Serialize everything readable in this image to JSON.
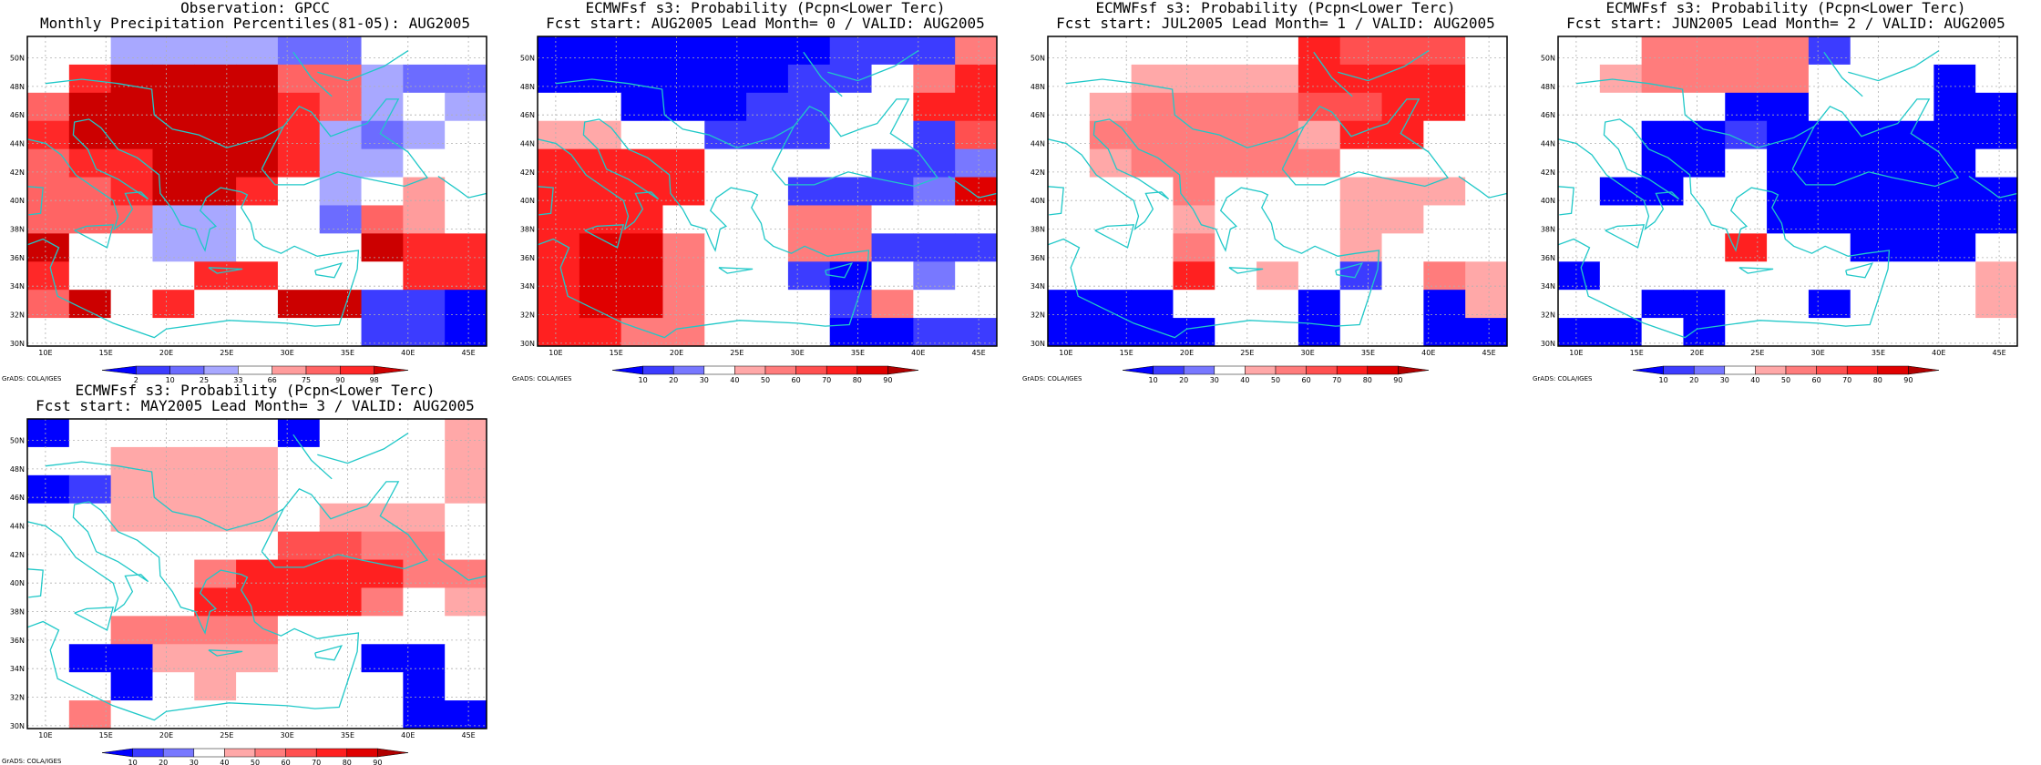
{
  "colors": {
    "ocean_coast": "#20c8c8",
    "grid": "#b0b0b0",
    "frame": "#000000"
  },
  "credit": "GrADS: COLA/IGES",
  "lon_ticks": [
    "10E",
    "15E",
    "20E",
    "25E",
    "30E",
    "35E",
    "40E",
    "45E"
  ],
  "lat_ticks": [
    "30N",
    "32N",
    "34N",
    "36N",
    "38N",
    "40N",
    "42N",
    "44N",
    "46N",
    "48N",
    "50N"
  ],
  "scales": {
    "percentile": {
      "labels": [
        "2",
        "10",
        "25",
        "33",
        "66",
        "75",
        "90",
        "98"
      ],
      "colors": [
        "#0000ff",
        "#3c3cff",
        "#6c6cff",
        "#a8a8ff",
        "#ffffff",
        "#ff9c9c",
        "#ff6464",
        "#ff2828",
        "#cc0000"
      ]
    },
    "probability": {
      "labels": [
        "10",
        "20",
        "30",
        "40",
        "50",
        "60",
        "70",
        "80",
        "90"
      ],
      "colors": [
        "#0000ff",
        "#3c3cff",
        "#7878ff",
        "#ffffff",
        "#ffa8a8",
        "#ff7c7c",
        "#ff5050",
        "#ff2020",
        "#e00000",
        "#b00000"
      ]
    }
  },
  "panels": [
    {
      "id": "obs",
      "title1": "Observation: GPCC",
      "title2": "Monthly Precipitation Percentiles(81-05): AUG2005",
      "scale": "percentile",
      "grid": [
        "44333322444",
        "47888866322",
        "68888876343",
        "78888873234",
        "67788873344",
        "66788743454",
        "66633442654",
        "84433444877",
        "74447744477",
        "68474488110",
        "44444444110"
      ]
    },
    {
      "id": "lead0",
      "title1": "ECMWFsf s3: Probability (Pcpn<Lower Terc)",
      "title2": "Fcst start: AUG2005  Lead Month= 0 / VALID: AUG2005",
      "scale": "probability",
      "grid": [
        "00000001115",
        "00000011357",
        "33000113377",
        "44331113316",
        "77773333112",
        "77773311128",
        "77733355333",
        "78853355111",
        "78853310323",
        "78853331533",
        "77553330011"
      ]
    },
    {
      "id": "lead1",
      "title1": "ECMWFsf s3: Probability (Pcpn<Lower Terc)",
      "title2": "Fcst start: JUL2005  Lead Month= 1 / VALID: AUG2005",
      "scale": "probability",
      "grid": [
        "33333376663",
        "33444477773",
        "34555566773",
        "35555547733",
        "34555553333",
        "33353334443",
        "33343334433",
        "33353334333",
        "33373431354",
        "00033303304",
        "00003303300"
      ]
    },
    {
      "id": "lead2",
      "title1": "ECMWFsf s3: Probability (Pcpn<Lower Terc)",
      "title2": "Fcst start: JUN2005  Lead Month= 2 / VALID: AUG2005",
      "scale": "probability",
      "grid": [
        "33555513333",
        "34555533303",
        "33330033300",
        "33001000000",
        "33003000003",
        "30033000000",
        "33333000000",
        "33337330003",
        "03333333334",
        "33003303334",
        "00303333333"
      ]
    },
    {
      "id": "lead3",
      "title1": "ECMWFsf s3: Probability (Pcpn<Lower Terc)",
      "title2": "Fcst start: MAY2005  Lead Month= 3 / VALID: AUG2005",
      "scale": "probability",
      "grid": [
        "03333303334",
        "33444433334",
        "01444433334",
        "33444434443",
        "33333366553",
        "33335777755",
        "33337777534",
        "33555533333",
        "30044433003",
        "33034333303",
        "35333333300"
      ]
    }
  ]
}
